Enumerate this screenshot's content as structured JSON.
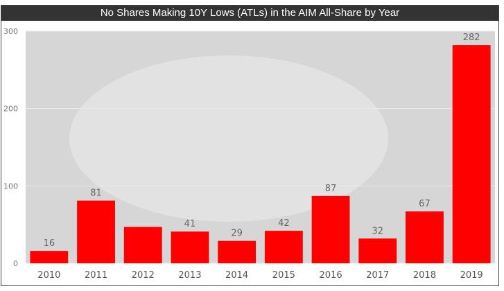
{
  "chart_data": {
    "type": "bar",
    "title": "No Shares Making 10Y Lows (ATLs)  in the AIM All-Share by Year",
    "categories": [
      "2010",
      "2011",
      "2012",
      "2013",
      "2014",
      "2015",
      "2016",
      "2017",
      "2018",
      "2019"
    ],
    "values": [
      16,
      81,
      47,
      41,
      29,
      42,
      87,
      32,
      67,
      282
    ],
    "data_labels": [
      "16",
      "81",
      null,
      "41",
      "29",
      "42",
      "87",
      "32",
      "67",
      "282"
    ],
    "yticks": [
      "0",
      "100",
      "200",
      "300"
    ],
    "ylim": [
      0,
      300
    ],
    "xlabel": "",
    "ylabel": "",
    "grid": true,
    "bar_color": "#ff0000"
  }
}
